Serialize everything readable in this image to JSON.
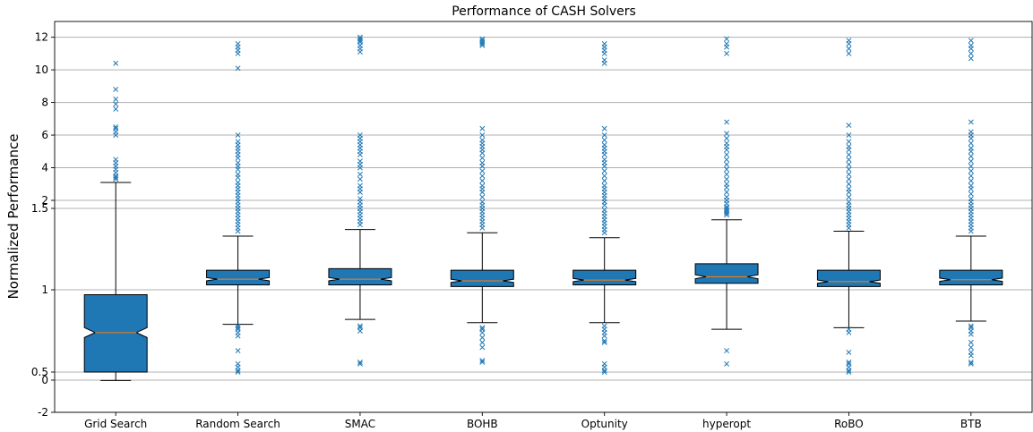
{
  "chart_data": {
    "type": "box",
    "title": "Performance of CASH Solvers",
    "ylabel": "Normalized Performance",
    "xlabel": "",
    "categories": [
      "Grid Search",
      "Random Search",
      "SMAC",
      "BOHB",
      "Optunity",
      "hyperopt",
      "RoBO",
      "BTB"
    ],
    "y_axis": {
      "scale": "broken",
      "lower_panel": {
        "ylim": [
          -2,
          1.5
        ],
        "ticks": [
          -2,
          0,
          0.5,
          1,
          1.5
        ],
        "tick_labels": [
          "-2",
          "0",
          "0.5",
          "1",
          "1.5"
        ]
      },
      "upper_panel": {
        "ylim": [
          1.5,
          12.5
        ],
        "ticks": [
          2,
          4,
          6,
          8,
          10,
          12
        ],
        "tick_labels": [
          "2",
          "4",
          "6",
          "8",
          "10",
          "12"
        ]
      }
    },
    "grid": "horizontal",
    "notched": true,
    "boxes": [
      {
        "name": "Grid Search",
        "whisker_low": -0.02,
        "q1": 0.5,
        "notch_low": 0.71,
        "median": 0.74,
        "notch_high": 0.77,
        "q3": 0.97,
        "whisker_high": 3.1,
        "fliers": [
          3.3,
          3.4,
          3.5,
          3.7,
          3.9,
          4.1,
          4.3,
          4.5,
          6.0,
          6.2,
          6.4,
          6.5,
          7.6,
          7.9,
          8.2,
          8.8,
          10.4
        ]
      },
      {
        "name": "Random Search",
        "whisker_low": 0.79,
        "q1": 1.03,
        "notch_low": 1.055,
        "median": 1.065,
        "notch_high": 1.075,
        "q3": 1.12,
        "whisker_high": 1.33,
        "fliers": [
          0.5,
          0.51,
          0.53,
          0.55,
          0.63,
          0.72,
          0.74,
          0.76,
          0.77,
          0.78,
          1.36,
          1.38,
          1.4,
          1.42,
          1.44,
          1.46,
          1.48,
          1.5,
          1.7,
          1.9,
          2.1,
          2.3,
          2.5,
          2.7,
          2.9,
          3.1,
          3.4,
          3.6,
          3.9,
          4.1,
          4.3,
          4.6,
          4.8,
          5.0,
          5.2,
          5.4,
          5.6,
          6.0,
          10.1,
          11.0,
          11.2,
          11.4,
          11.6
        ]
      },
      {
        "name": "SMAC",
        "whisker_low": 0.82,
        "q1": 1.03,
        "notch_low": 1.055,
        "median": 1.065,
        "notch_high": 1.075,
        "q3": 1.13,
        "whisker_high": 1.37,
        "fliers": [
          0.55,
          0.56,
          0.75,
          0.77,
          0.78,
          1.4,
          1.42,
          1.44,
          1.46,
          1.48,
          1.5,
          1.7,
          1.9,
          2.1,
          2.5,
          2.7,
          2.9,
          3.3,
          3.6,
          4.0,
          4.2,
          4.4,
          4.8,
          5.0,
          5.2,
          5.4,
          5.6,
          5.8,
          6.0,
          11.1,
          11.3,
          11.5,
          11.7,
          11.8,
          11.9,
          12.0
        ]
      },
      {
        "name": "BOHB",
        "whisker_low": 0.8,
        "q1": 1.02,
        "notch_low": 1.045,
        "median": 1.055,
        "notch_high": 1.065,
        "q3": 1.12,
        "whisker_high": 1.35,
        "fliers": [
          0.56,
          0.57,
          0.65,
          0.68,
          0.71,
          0.74,
          0.76,
          0.77,
          1.38,
          1.4,
          1.42,
          1.44,
          1.46,
          1.48,
          1.5,
          1.7,
          1.9,
          2.2,
          2.5,
          2.7,
          2.9,
          3.2,
          3.5,
          3.8,
          4.1,
          4.3,
          4.6,
          4.9,
          5.1,
          5.3,
          5.5,
          5.7,
          6.0,
          6.4,
          11.5,
          11.6,
          11.7,
          11.8,
          11.9
        ]
      },
      {
        "name": "Optunity",
        "whisker_low": 0.8,
        "q1": 1.03,
        "notch_low": 1.05,
        "median": 1.06,
        "notch_high": 1.07,
        "q3": 1.12,
        "whisker_high": 1.32,
        "fliers": [
          0.5,
          0.51,
          0.53,
          0.55,
          0.68,
          0.69,
          0.72,
          0.74,
          0.76,
          0.78,
          1.35,
          1.37,
          1.39,
          1.41,
          1.43,
          1.45,
          1.47,
          1.49,
          1.7,
          1.9,
          2.1,
          2.3,
          2.5,
          2.7,
          2.9,
          3.2,
          3.5,
          3.8,
          4.1,
          4.3,
          4.5,
          4.8,
          5.0,
          5.2,
          5.4,
          5.7,
          6.0,
          6.4,
          10.4,
          10.6,
          11.0,
          11.2,
          11.4,
          11.6
        ]
      },
      {
        "name": "hyperopt",
        "whisker_low": 0.76,
        "q1": 1.04,
        "notch_low": 1.068,
        "median": 1.08,
        "notch_high": 1.092,
        "q3": 1.16,
        "whisker_high": 1.43,
        "fliers": [
          0.55,
          0.63,
          1.46,
          1.47,
          1.48,
          1.49,
          1.5,
          1.6,
          1.8,
          2.0,
          2.2,
          2.5,
          2.8,
          3.0,
          3.3,
          3.6,
          3.9,
          4.2,
          4.5,
          4.8,
          5.1,
          5.3,
          5.5,
          5.8,
          6.1,
          6.8,
          11.0,
          11.4,
          11.6,
          11.9
        ]
      },
      {
        "name": "RoBO",
        "whisker_low": 0.77,
        "q1": 1.02,
        "notch_low": 1.04,
        "median": 1.05,
        "notch_high": 1.06,
        "q3": 1.12,
        "whisker_high": 1.36,
        "fliers": [
          0.5,
          0.51,
          0.53,
          0.55,
          0.56,
          0.62,
          0.74,
          0.76,
          1.38,
          1.4,
          1.42,
          1.44,
          1.46,
          1.48,
          1.5,
          1.7,
          1.9,
          2.2,
          2.5,
          2.7,
          3.0,
          3.3,
          3.6,
          3.9,
          4.2,
          4.5,
          4.8,
          5.1,
          5.3,
          5.6,
          6.0,
          6.6,
          11.0,
          11.3,
          11.6,
          11.8
        ]
      },
      {
        "name": "BTB",
        "whisker_low": 0.81,
        "q1": 1.03,
        "notch_low": 1.052,
        "median": 1.062,
        "notch_high": 1.072,
        "q3": 1.12,
        "whisker_high": 1.33,
        "fliers": [
          0.55,
          0.56,
          0.6,
          0.62,
          0.65,
          0.68,
          0.73,
          0.75,
          0.77,
          0.78,
          1.36,
          1.38,
          1.4,
          1.42,
          1.44,
          1.46,
          1.48,
          1.5,
          1.7,
          1.9,
          2.1,
          2.4,
          2.7,
          2.9,
          3.2,
          3.5,
          3.8,
          4.1,
          4.4,
          4.7,
          5.0,
          5.2,
          5.5,
          5.8,
          6.0,
          6.2,
          6.8,
          10.7,
          11.0,
          11.3,
          11.5,
          11.8
        ]
      }
    ]
  }
}
